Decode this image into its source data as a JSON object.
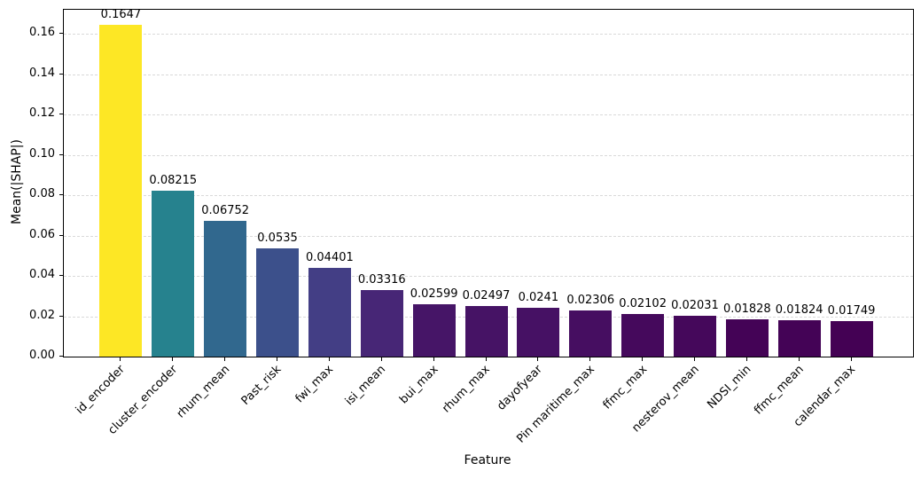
{
  "chart_data": {
    "type": "bar",
    "title": "",
    "xlabel": "Feature",
    "ylabel": "Mean(|SHAP|)",
    "ylim": [
      0,
      0.172
    ],
    "grid": true,
    "grid_style": "dashed horizontal",
    "legend_position": "none",
    "palette": "viridis",
    "categories": [
      "id_encoder",
      "cluster_encoder",
      "rhum_mean",
      "Past_risk",
      "fwi_max",
      "isi_mean",
      "bui_max",
      "rhum_max",
      "dayofyear",
      "Pin maritime_max",
      "ffmc_max",
      "nesterov_mean",
      "NDSI_min",
      "ffmc_mean",
      "calendar_max"
    ],
    "values": [
      0.1647,
      0.08215,
      0.06752,
      0.0535,
      0.04401,
      0.03316,
      0.02599,
      0.02497,
      0.0241,
      0.02306,
      0.02102,
      0.02031,
      0.01828,
      0.01824,
      0.01749
    ],
    "value_labels": [
      "0.1647",
      "0.08215",
      "0.06752",
      "0.0535",
      "0.04401",
      "0.03316",
      "0.02599",
      "0.02497",
      "0.0241",
      "0.02306",
      "0.02102",
      "0.02031",
      "0.01828",
      "0.01824",
      "0.01749"
    ],
    "bar_colors": [
      "#fde725",
      "#26828e",
      "#31688e",
      "#3c508b",
      "#433e85",
      "#472676",
      "#461567",
      "#461365",
      "#461164",
      "#460e61",
      "#45095c",
      "#45085b",
      "#440356",
      "#440356",
      "#440154"
    ],
    "yticks": [
      0,
      0.02,
      0.04,
      0.06,
      0.08,
      0.1,
      0.12,
      0.14,
      0.16
    ],
    "ytick_labels": [
      "0.00",
      "0.02",
      "0.04",
      "0.06",
      "0.08",
      "0.10",
      "0.12",
      "0.14",
      "0.16"
    ]
  },
  "colors": {
    "grid": "#d9d9d9",
    "spine": "#000000",
    "background": "#ffffff"
  }
}
